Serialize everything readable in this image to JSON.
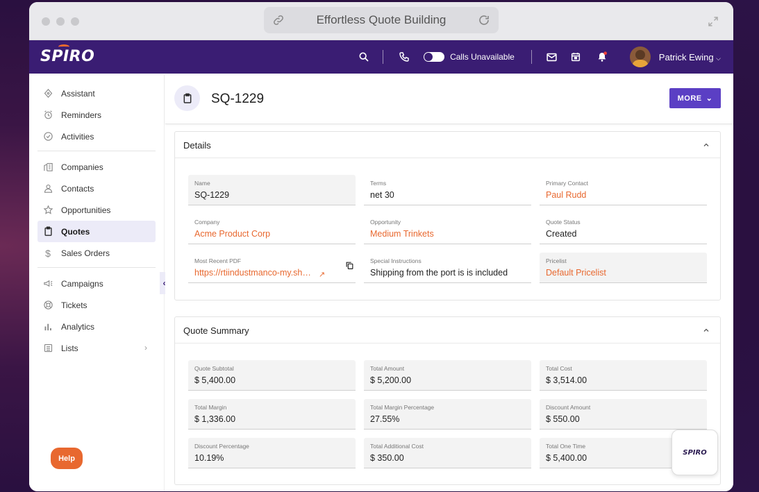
{
  "browser": {
    "url_title": "Effortless Quote Building"
  },
  "app": {
    "logo": "SPIRO"
  },
  "topnav": {
    "calls_status": "Calls Unavailable",
    "user_name": "Patrick Ewing"
  },
  "sidebar": {
    "items": [
      {
        "label": "Assistant",
        "icon": "assistant-icon"
      },
      {
        "label": "Reminders",
        "icon": "alarm-icon"
      },
      {
        "label": "Activities",
        "icon": "check-circle-icon"
      },
      {
        "label": "Companies",
        "icon": "building-icon"
      },
      {
        "label": "Contacts",
        "icon": "person-icon"
      },
      {
        "label": "Opportunities",
        "icon": "star-icon"
      },
      {
        "label": "Quotes",
        "icon": "clipboard-icon",
        "active": true
      },
      {
        "label": "Sales Orders",
        "icon": "dollar-icon"
      },
      {
        "label": "Campaigns",
        "icon": "megaphone-icon"
      },
      {
        "label": "Tickets",
        "icon": "lifebuoy-icon"
      },
      {
        "label": "Analytics",
        "icon": "bar-chart-icon"
      },
      {
        "label": "Lists",
        "icon": "list-icon"
      }
    ],
    "help_label": "Help"
  },
  "page": {
    "title": "SQ-1229",
    "more_label": "MORE"
  },
  "details": {
    "title": "Details",
    "fields": [
      {
        "label": "Name",
        "value": "SQ-1229"
      },
      {
        "label": "Terms",
        "value": "net 30"
      },
      {
        "label": "Primary Contact",
        "value": "Paul Rudd"
      },
      {
        "label": "Company",
        "value": "Acme Product Corp"
      },
      {
        "label": "Opportunity",
        "value": "Medium Trinkets"
      },
      {
        "label": "Quote Status",
        "value": "Created"
      },
      {
        "label": "Most Recent PDF",
        "value": "https://rtiindustmanco-my.sharepoint.com"
      },
      {
        "label": "Special Instructions",
        "value": "Shipping from the port is is included"
      },
      {
        "label": "Pricelist",
        "value": "Default Pricelist"
      }
    ]
  },
  "summary": {
    "title": "Quote Summary",
    "fields": [
      {
        "label": "Quote Subtotal",
        "value": "$ 5,400.00"
      },
      {
        "label": "Total Amount",
        "value": "$ 5,200.00"
      },
      {
        "label": "Total Cost",
        "value": "$ 3,514.00"
      },
      {
        "label": "Total Margin",
        "value": "$ 1,336.00"
      },
      {
        "label": "Total Margin Percentage",
        "value": "27.55%"
      },
      {
        "label": "Discount Amount",
        "value": "$ 550.00"
      },
      {
        "label": "Discount Percentage",
        "value": "10.19%"
      },
      {
        "label": "Total Additional Cost",
        "value": "$ 350.00"
      },
      {
        "label": "Total One Time",
        "value": "$ 5,400.00"
      }
    ]
  },
  "badge": {
    "label": "SPIRO"
  },
  "colors": {
    "nav": "#3a1d73",
    "accent": "#5b3fc4",
    "link": "#e8682f"
  }
}
